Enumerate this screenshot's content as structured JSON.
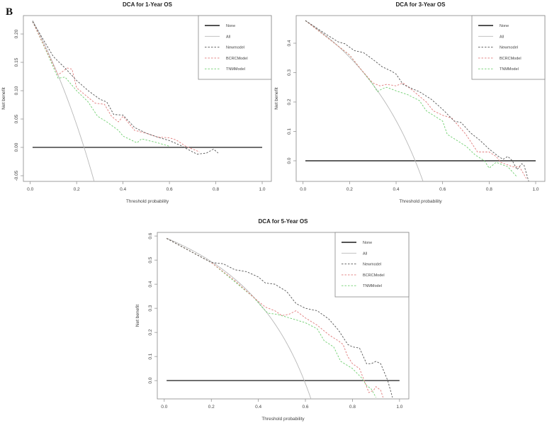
{
  "panel_label": "B",
  "chart_data": [
    {
      "type": "line",
      "title": "DCA for 1-Year OS",
      "xlabel": "Threshold probability",
      "ylabel": "Net benefit",
      "xlim": [
        -0.0296,
        1.0396
      ],
      "ylim": [
        -0.06,
        0.2325
      ],
      "xticks": [
        0,
        0.2,
        0.4,
        0.6,
        0.8,
        1.0
      ],
      "xtick_labels": [
        "0.0",
        "0.2",
        "0.4",
        "0.6",
        "0.8",
        "1.0"
      ],
      "yticks": [
        -0.05,
        0,
        0.05,
        0.1,
        0.15,
        0.2
      ],
      "ytick_labels": [
        "-0.05",
        "0.00",
        "0.05",
        "0.10",
        "0.15",
        "0.20"
      ],
      "legend": {
        "placement": "top-right",
        "entries": [
          "None",
          "All",
          "Newmodel",
          "BCRCModel",
          "TNMModel"
        ]
      },
      "all_prevalence": 0.232,
      "none_range": [
        0.01,
        1.0
      ],
      "series": [
        {
          "name": "Newmodel",
          "points": [
            [
              0.01,
              0.222
            ],
            [
              0.1,
              0.16
            ],
            [
              0.15,
              0.14
            ],
            [
              0.2,
              0.118
            ],
            [
              0.25,
              0.1
            ],
            [
              0.3,
              0.085
            ],
            [
              0.33,
              0.08
            ],
            [
              0.36,
              0.058
            ],
            [
              0.4,
              0.057
            ],
            [
              0.45,
              0.035
            ],
            [
              0.5,
              0.025
            ],
            [
              0.55,
              0.018
            ],
            [
              0.6,
              0.012
            ],
            [
              0.65,
              0.003
            ],
            [
              0.7,
              -0.008
            ],
            [
              0.72,
              -0.012
            ],
            [
              0.76,
              -0.01
            ],
            [
              0.79,
              -0.003
            ],
            [
              0.81,
              -0.01
            ]
          ]
        },
        {
          "name": "BCRCModel",
          "points": [
            [
              0.01,
              0.222
            ],
            [
              0.1,
              0.145
            ],
            [
              0.12,
              0.128
            ],
            [
              0.16,
              0.14
            ],
            [
              0.18,
              0.138
            ],
            [
              0.2,
              0.105
            ],
            [
              0.25,
              0.088
            ],
            [
              0.28,
              0.078
            ],
            [
              0.32,
              0.076
            ],
            [
              0.35,
              0.055
            ],
            [
              0.38,
              0.045
            ],
            [
              0.4,
              0.055
            ],
            [
              0.43,
              0.04
            ],
            [
              0.45,
              0.03
            ],
            [
              0.5,
              0.025
            ],
            [
              0.55,
              0.018
            ],
            [
              0.6,
              0.017
            ],
            [
              0.63,
              0.013
            ],
            [
              0.67,
              0.002
            ],
            [
              0.7,
              -0.003
            ],
            [
              0.73,
              -0.008
            ]
          ]
        },
        {
          "name": "TNMModel",
          "points": [
            [
              0.01,
              0.222
            ],
            [
              0.08,
              0.16
            ],
            [
              0.12,
              0.122
            ],
            [
              0.15,
              0.124
            ],
            [
              0.2,
              0.1
            ],
            [
              0.25,
              0.08
            ],
            [
              0.29,
              0.055
            ],
            [
              0.33,
              0.045
            ],
            [
              0.38,
              0.03
            ],
            [
              0.4,
              0.02
            ],
            [
              0.46,
              0.008
            ],
            [
              0.48,
              0.015
            ],
            [
              0.55,
              0.008
            ],
            [
              0.6,
              0.002
            ]
          ]
        }
      ]
    },
    {
      "type": "line",
      "title": "DCA for 3-Year OS",
      "xlabel": "Threshold probability",
      "ylabel": "Net benefit",
      "xlim": [
        -0.0296,
        1.0396
      ],
      "ylim": [
        -0.07,
        0.494
      ],
      "xticks": [
        0,
        0.2,
        0.4,
        0.6,
        0.8,
        1.0
      ],
      "xtick_labels": [
        "0.0",
        "0.2",
        "0.4",
        "0.6",
        "0.8",
        "1.0"
      ],
      "yticks": [
        0,
        0.1,
        0.2,
        0.3,
        0.4
      ],
      "ytick_labels": [
        "0.0",
        "0.1",
        "0.2",
        "0.3",
        "0.4"
      ],
      "legend": {
        "placement": "top-right",
        "entries": [
          "None",
          "All",
          "Newmodel",
          "BCRCModel",
          "TNMModel"
        ]
      },
      "all_prevalence": 0.482,
      "none_range": [
        0.01,
        1.0
      ],
      "series": [
        {
          "name": "Newmodel",
          "points": [
            [
              0.01,
              0.477
            ],
            [
              0.1,
              0.43
            ],
            [
              0.15,
              0.405
            ],
            [
              0.18,
              0.398
            ],
            [
              0.22,
              0.375
            ],
            [
              0.26,
              0.368
            ],
            [
              0.3,
              0.345
            ],
            [
              0.34,
              0.32
            ],
            [
              0.38,
              0.305
            ],
            [
              0.4,
              0.295
            ],
            [
              0.43,
              0.26
            ],
            [
              0.47,
              0.245
            ],
            [
              0.5,
              0.235
            ],
            [
              0.55,
              0.21
            ],
            [
              0.6,
              0.175
            ],
            [
              0.65,
              0.135
            ],
            [
              0.68,
              0.13
            ],
            [
              0.72,
              0.095
            ],
            [
              0.76,
              0.07
            ],
            [
              0.8,
              0.04
            ],
            [
              0.84,
              0.015
            ],
            [
              0.86,
              0.005
            ],
            [
              0.88,
              0.015
            ],
            [
              0.9,
              0.0
            ],
            [
              0.92,
              -0.03
            ],
            [
              0.94,
              -0.01
            ],
            [
              0.95,
              -0.015
            ],
            [
              0.97,
              -0.07
            ]
          ]
        },
        {
          "name": "BCRCModel",
          "points": [
            [
              0.01,
              0.477
            ],
            [
              0.2,
              0.36
            ],
            [
              0.25,
              0.31
            ],
            [
              0.3,
              0.265
            ],
            [
              0.33,
              0.255
            ],
            [
              0.36,
              0.26
            ],
            [
              0.4,
              0.255
            ],
            [
              0.43,
              0.265
            ],
            [
              0.47,
              0.24
            ],
            [
              0.5,
              0.22
            ],
            [
              0.53,
              0.2
            ],
            [
              0.56,
              0.17
            ],
            [
              0.6,
              0.155
            ],
            [
              0.64,
              0.145
            ],
            [
              0.7,
              0.09
            ],
            [
              0.75,
              0.03
            ],
            [
              0.8,
              0.03
            ],
            [
              0.83,
              0.015
            ],
            [
              0.85,
              -0.005
            ],
            [
              0.9,
              -0.02
            ],
            [
              0.93,
              -0.02
            ],
            [
              0.96,
              -0.06
            ]
          ]
        },
        {
          "name": "TNMModel",
          "points": [
            [
              0.01,
              0.477
            ],
            [
              0.2,
              0.36
            ],
            [
              0.3,
              0.26
            ],
            [
              0.32,
              0.235
            ],
            [
              0.34,
              0.245
            ],
            [
              0.36,
              0.25
            ],
            [
              0.4,
              0.238
            ],
            [
              0.45,
              0.225
            ],
            [
              0.5,
              0.205
            ],
            [
              0.53,
              0.17
            ],
            [
              0.57,
              0.15
            ],
            [
              0.6,
              0.135
            ],
            [
              0.62,
              0.09
            ],
            [
              0.66,
              0.07
            ],
            [
              0.7,
              0.05
            ],
            [
              0.74,
              0.02
            ],
            [
              0.78,
              0.0
            ],
            [
              0.8,
              -0.025
            ],
            [
              0.83,
              -0.005
            ],
            [
              0.88,
              -0.02
            ],
            [
              0.92,
              -0.055
            ]
          ]
        }
      ]
    },
    {
      "type": "line",
      "title": "DCA for 5-Year OS",
      "xlabel": "Threshold probability",
      "ylabel": "Net benefit",
      "xlim": [
        -0.0296,
        1.0396
      ],
      "ylim": [
        -0.076,
        0.615
      ],
      "xticks": [
        0,
        0.2,
        0.4,
        0.6,
        0.8,
        1.0
      ],
      "xtick_labels": [
        "0.0",
        "0.2",
        "0.4",
        "0.6",
        "0.8",
        "1.0"
      ],
      "yticks": [
        0,
        0.1,
        0.2,
        0.3,
        0.4,
        0.5,
        0.6
      ],
      "ytick_labels": [
        "0.0",
        "0.1",
        "0.2",
        "0.3",
        "0.4",
        "0.5",
        "0.6"
      ],
      "legend": {
        "placement": "top-right",
        "entries": [
          "None",
          "All",
          "Newmodel",
          "BCRCModel",
          "TNMModel"
        ]
      },
      "all_prevalence": 0.595,
      "none_range": [
        0.01,
        1.0
      ],
      "series": [
        {
          "name": "Newmodel",
          "points": [
            [
              0.01,
              0.59
            ],
            [
              0.2,
              0.49
            ],
            [
              0.25,
              0.485
            ],
            [
              0.3,
              0.46
            ],
            [
              0.35,
              0.452
            ],
            [
              0.4,
              0.43
            ],
            [
              0.43,
              0.405
            ],
            [
              0.47,
              0.4
            ],
            [
              0.52,
              0.37
            ],
            [
              0.56,
              0.32
            ],
            [
              0.6,
              0.3
            ],
            [
              0.65,
              0.29
            ],
            [
              0.7,
              0.255
            ],
            [
              0.74,
              0.21
            ],
            [
              0.78,
              0.15
            ],
            [
              0.8,
              0.14
            ],
            [
              0.83,
              0.135
            ],
            [
              0.86,
              0.07
            ],
            [
              0.88,
              0.07
            ],
            [
              0.9,
              0.08
            ],
            [
              0.92,
              0.07
            ],
            [
              0.95,
              0.0
            ],
            [
              0.97,
              -0.07
            ]
          ]
        },
        {
          "name": "BCRCModel",
          "points": [
            [
              0.01,
              0.59
            ],
            [
              0.2,
              0.49
            ],
            [
              0.3,
              0.415
            ],
            [
              0.38,
              0.345
            ],
            [
              0.43,
              0.305
            ],
            [
              0.47,
              0.29
            ],
            [
              0.5,
              0.27
            ],
            [
              0.53,
              0.275
            ],
            [
              0.56,
              0.29
            ],
            [
              0.6,
              0.26
            ],
            [
              0.65,
              0.23
            ],
            [
              0.7,
              0.19
            ],
            [
              0.74,
              0.165
            ],
            [
              0.76,
              0.15
            ],
            [
              0.78,
              0.1
            ],
            [
              0.8,
              0.07
            ],
            [
              0.83,
              0.05
            ],
            [
              0.85,
              0.0
            ],
            [
              0.87,
              -0.05
            ],
            [
              0.89,
              -0.04
            ],
            [
              0.9,
              -0.025
            ],
            [
              0.92,
              -0.04
            ],
            [
              0.93,
              -0.07
            ]
          ]
        },
        {
          "name": "TNMModel",
          "points": [
            [
              0.01,
              0.59
            ],
            [
              0.2,
              0.49
            ],
            [
              0.3,
              0.41
            ],
            [
              0.38,
              0.345
            ],
            [
              0.42,
              0.3
            ],
            [
              0.44,
              0.28
            ],
            [
              0.48,
              0.275
            ],
            [
              0.55,
              0.255
            ],
            [
              0.6,
              0.24
            ],
            [
              0.65,
              0.215
            ],
            [
              0.68,
              0.165
            ],
            [
              0.72,
              0.14
            ],
            [
              0.75,
              0.08
            ],
            [
              0.8,
              0.05
            ],
            [
              0.84,
              0.01
            ],
            [
              0.86,
              -0.02
            ],
            [
              0.88,
              -0.035
            ],
            [
              0.9,
              -0.07
            ]
          ]
        }
      ]
    }
  ],
  "colors": {
    "None": "#1a1a1a",
    "All": "#b8b8b8",
    "Newmodel": "#555555",
    "BCRCModel": "#e07a7a",
    "TNMModel": "#6fcf6f",
    "frame": "#888888"
  }
}
